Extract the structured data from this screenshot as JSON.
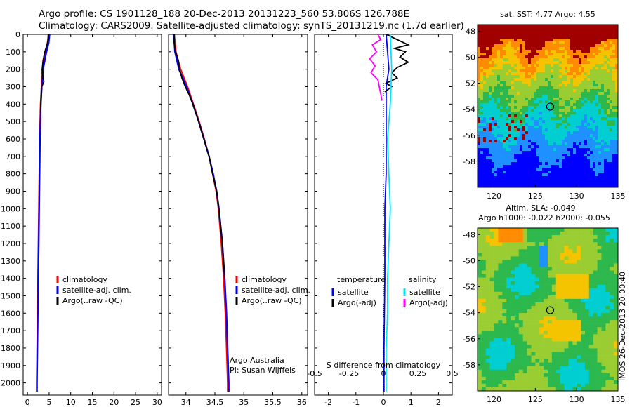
{
  "header": {
    "line1": "Argo profile: CS 1901128_188 20-Dec-2013 20131223_560 53.806S 126.788E",
    "line2": "Climatology: CARS2009. Satellite-adjusted climatology: synTS_20131219.nc (1.7d earlier)"
  },
  "colors": {
    "climatology": "#ff0000",
    "satellite": "#0000ff",
    "argo": "#000000",
    "sat_salinity": "#00e5ff",
    "argo_salinity": "#ff00ff"
  },
  "chart_data": [
    {
      "type": "line",
      "xlabel": "temperature (deg C)",
      "ylabel": "",
      "xlim": [
        -1,
        31
      ],
      "ylim": [
        2070,
        0
      ],
      "xticks": [
        "0",
        "5",
        "10",
        "15",
        "20",
        "25",
        "30"
      ],
      "yticks": [
        "0",
        "100",
        "200",
        "300",
        "400",
        "500",
        "600",
        "700",
        "800",
        "900",
        "1000",
        "1100",
        "1200",
        "1300",
        "1400",
        "1500",
        "1600",
        "1700",
        "1800",
        "1900",
        "2000"
      ],
      "legend": [
        "climatology",
        "satellite-adj. clim.",
        "Argo(..raw -QC)"
      ],
      "series": [
        {
          "name": "climatology",
          "depth": [
            0,
            50,
            100,
            150,
            200,
            300,
            400,
            600,
            800,
            1000,
            1200,
            1400,
            1600,
            1800,
            2000,
            2050
          ],
          "values": [
            4.8,
            4.6,
            4.2,
            3.8,
            3.4,
            3.2,
            3.0,
            2.8,
            2.7,
            2.6,
            2.5,
            2.4,
            2.3,
            2.2,
            2.1,
            2.1
          ]
        },
        {
          "name": "satellite-adj. clim.",
          "depth": [
            0,
            50,
            100,
            150,
            200,
            300,
            400,
            600,
            800,
            1000,
            1200,
            1400,
            1600,
            1800,
            2000,
            2050
          ],
          "values": [
            5.1,
            4.9,
            4.4,
            4.0,
            3.6,
            3.3,
            3.1,
            2.9,
            2.8,
            2.7,
            2.6,
            2.5,
            2.4,
            2.3,
            2.2,
            2.2
          ]
        },
        {
          "name": "Argo(..raw -QC)",
          "depth": [
            0,
            30,
            60,
            100,
            150,
            200,
            250,
            270,
            300,
            350,
            400,
            450
          ],
          "values": [
            4.9,
            4.8,
            4.5,
            4.0,
            3.6,
            3.4,
            3.6,
            3.8,
            3.3,
            3.2,
            3.1,
            3.0
          ]
        }
      ]
    },
    {
      "type": "line",
      "xlabel": "salinity",
      "ylabel": "",
      "xlim": [
        33.7,
        36.1
      ],
      "ylim": [
        2070,
        0
      ],
      "xticks": [
        "34",
        "34.5",
        "35",
        "35.5",
        "36"
      ],
      "legend": [
        "climatology",
        "satellite-adj. clim.",
        "Argo(..raw -QC)"
      ],
      "annotation": [
        "Argo Australia",
        "PI: Susan Wijffels"
      ],
      "series": [
        {
          "name": "climatology",
          "depth": [
            0,
            100,
            200,
            300,
            400,
            500,
            600,
            700,
            800,
            900,
            1000,
            1200,
            1400,
            1600,
            1800,
            2000,
            2050
          ],
          "values": [
            33.8,
            33.83,
            33.91,
            34.03,
            34.13,
            34.23,
            34.32,
            34.4,
            34.46,
            34.52,
            34.56,
            34.61,
            34.65,
            34.68,
            34.7,
            34.72,
            34.72
          ]
        },
        {
          "name": "satellite-adj. clim.",
          "depth": [
            0,
            100,
            200,
            300,
            400,
            500,
            600,
            700,
            800,
            900,
            1000,
            1200,
            1400,
            1600,
            1800,
            2000,
            2050
          ],
          "values": [
            33.79,
            33.81,
            33.88,
            34.01,
            34.12,
            34.22,
            34.31,
            34.4,
            34.47,
            34.53,
            34.57,
            34.63,
            34.67,
            34.7,
            34.72,
            34.74,
            34.74
          ]
        },
        {
          "name": "Argo(..raw -QC)",
          "depth": [
            0,
            50,
            100,
            150,
            200,
            250,
            300,
            350,
            400,
            500,
            600,
            700,
            800,
            900,
            1000,
            1200,
            1400
          ],
          "values": [
            33.8,
            33.8,
            33.82,
            33.87,
            33.89,
            33.93,
            33.99,
            34.06,
            34.12,
            34.22,
            34.31,
            34.4,
            34.46,
            34.53,
            34.57,
            34.63,
            34.67
          ]
        }
      ]
    },
    {
      "type": "line",
      "xlabel": "T difference from climatology",
      "xlabel_top": "S difference from climatology",
      "ylabel": "",
      "xlim": [
        -2.5,
        2.5
      ],
      "ylim": [
        2070,
        0
      ],
      "xticks": [
        "-2",
        "-1",
        "0",
        "1",
        "2"
      ],
      "xticks_top": [
        "-0.5",
        "-0.25",
        "0",
        "0.25",
        "0.5"
      ],
      "legend_headers": [
        "temperature",
        "salinity"
      ],
      "legend": [
        "satellite",
        "Argo(-adj)",
        "satellite",
        "Argo(-adj)"
      ],
      "series": [
        {
          "name": "temperature satellite",
          "depth": [
            0,
            100,
            200,
            300,
            400,
            600,
            800,
            1000,
            1400,
            1800,
            2050
          ],
          "values": [
            0.1,
            0.15,
            0.2,
            0.1,
            0.1,
            0.1,
            0.1,
            0.05,
            0.05,
            0.02,
            0.02
          ]
        },
        {
          "name": "temperature Argo(-adj)",
          "depth": [
            0,
            30,
            60,
            80,
            100,
            130,
            160,
            190,
            220,
            250,
            280,
            300,
            330
          ],
          "values": [
            0.1,
            0.5,
            0.9,
            0.4,
            0.8,
            0.6,
            0.9,
            0.5,
            0.3,
            0.5,
            0.1,
            0.3,
            0.05
          ]
        },
        {
          "name": "salinity satellite",
          "depth": [
            0,
            200,
            400,
            600,
            800,
            1000,
            1200,
            1400,
            1600,
            1800,
            2050
          ],
          "values": [
            0.05,
            0.06,
            0.05,
            0.03,
            0.04,
            0.05,
            0.04,
            0.03,
            0.03,
            0.02,
            0.02
          ]
        },
        {
          "name": "salinity Argo(-adj)",
          "depth": [
            0,
            30,
            60,
            100,
            140,
            180,
            220,
            260,
            300,
            340,
            380
          ],
          "values": [
            -0.04,
            -0.02,
            -0.08,
            -0.05,
            -0.1,
            -0.06,
            -0.09,
            -0.04,
            -0.03,
            -0.02,
            -0.01
          ]
        }
      ]
    },
    {
      "type": "heatmap",
      "title": "sat. SST: 4.77  Argo: 4.55",
      "xlim": [
        118,
        135
      ],
      "ylim": [
        -60,
        -47.5
      ],
      "xticks": [
        "120",
        "125",
        "130",
        "135"
      ],
      "yticks": [
        "-48",
        "-50",
        "-52",
        "-54",
        "-56",
        "-58"
      ],
      "marker": [
        126.788,
        -53.806
      ]
    },
    {
      "type": "heatmap",
      "title": "Altim. SLA: -0.049",
      "subtitle": "Argo h1000: -0.022 h2000: -0.055",
      "xlim": [
        118,
        135
      ],
      "ylim": [
        -60,
        -47.5
      ],
      "xticks": [
        "120",
        "125",
        "130",
        "135"
      ],
      "yticks": [
        "-48",
        "-50",
        "-52",
        "-54",
        "-56",
        "-58"
      ],
      "marker": [
        126.788,
        -53.806
      ],
      "side_label": "IMOS 26-Dec-2013 20:00:40"
    }
  ]
}
